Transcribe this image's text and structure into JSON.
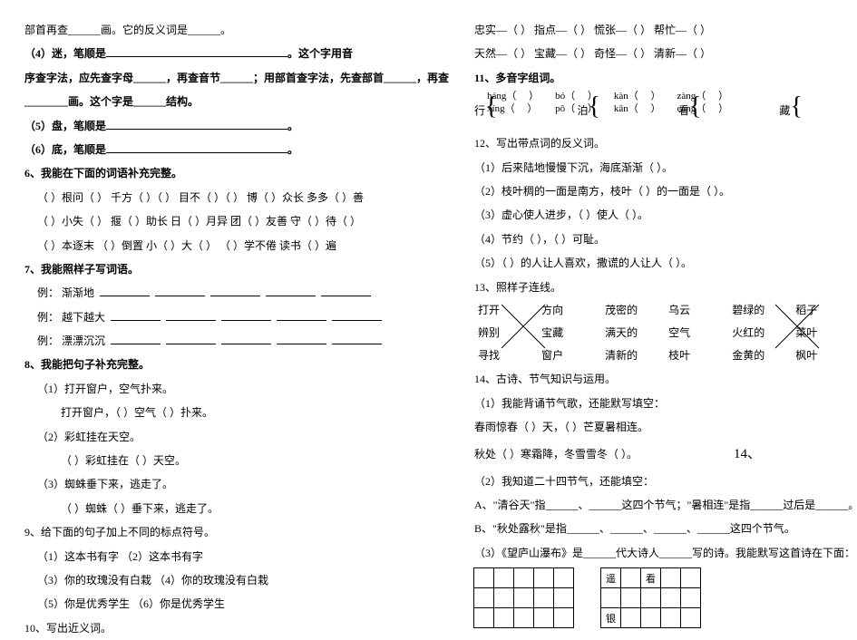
{
  "left": {
    "l1": "部首再查______画。它的反义词是______。",
    "l2_a": "（4）迷，笔顺是",
    "l2_b": "。这个字用音",
    "l3": "序查字法，应先查字母______，再查音节______；用部首查字法，先查部首______，再查",
    "l4": "________画。这个字是______结构。",
    "l5_a": "（5）盘，笔顺是",
    "l5_b": "。",
    "l6_a": "（6）底，笔顺是",
    "l6_b": "。",
    "t6": "6、我能在下面的词语补充完整。",
    "w1": "（  ）根问（  ）  千方（  ）（  ）  目不（  ）（  ）    博（  ）众长  多多（  ）善",
    "w2": "（  ）小失（    ） 揠（  ）助长    日（  ）月异  团（  ）友善   守（  ）待（  ）",
    "w3": "（  ）本逐末  （    ）倒置   小（  ）大（  ） （  ）学不倦   读书（    ）遍",
    "t7": "7、我能照样子写词语。",
    "ex1": "例：  渐渐地",
    "ex2": "例：  越下越大",
    "ex3": "例：  漂漂沉沉",
    "t8": "8、我能把句子补充完整。",
    "s81a": "（1）打开窗户，空气扑来。",
    "s81b": "打开窗户，（          ）空气（        ）扑来。",
    "s82a": "（2）彩虹挂在天空。",
    "s82b": "（            ）彩虹挂在（          ）天空。",
    "s83a": "（3）蜘蛛垂下来，逃走了。",
    "s83b": "（        ）蜘蛛（            ）垂下来，逃走了。",
    "t9": "9、给下面的句子加上不同的标点符号。",
    "s91": "（1）这本书有字         （2）这本书有字",
    "s93": "（3）你的玫瑰没有白栽        （4）你的玫瑰没有白栽",
    "s95": "（5）你是优秀学生    （6）你是优秀学生",
    "t10": "10、写出近义词。"
  },
  "right": {
    "r1": "忠实—（        ）  指点—（        ）  慌张—（        ）  帮忙—（        ）",
    "r2": "天然—（        ）  宝藏—（        ）  奇怪—（        ）  清新—（        ）",
    "t11": "11、多音字组词。",
    "m_top_a": "háng（",
    "m_top_b": "bó（",
    "m_top_c": "kàn（",
    "m_top_d": "zàng（",
    "m_lbl1": "行",
    "m_lbl2": "泊",
    "m_lbl3": "看",
    "m_lbl4": "藏",
    "m_bot_a": "xíng（",
    "m_bot_b": "pō（",
    "m_bot_c": "kān（",
    "m_bot_d": "cáng（",
    "close": "）",
    "t12": "12、写出带点词的反义词。",
    "r121": "（1）后来陆地慢慢下沉，海底渐渐（          ）。",
    "r122": "（2）枝叶稠的一面是南方，枝叶（        ）的一面是（        ）。",
    "r123": "（3）虚心使人进步，（          ）使人（          ）。",
    "r124": "（4）节约（            ），（        ）可耻。",
    "r125": "（5）（            ）的人让人喜欢，撒谎的人让人（            ）。",
    "t13": "13、照样子连线。",
    "c1": [
      "打开",
      "方向",
      "茂密的",
      "乌云",
      "碧绿的",
      "稻子"
    ],
    "c2": [
      "辨别",
      "宝藏",
      "满天的",
      "空气",
      "火红的",
      "菜叶"
    ],
    "c3": [
      "寻找",
      "窗户",
      "清新的",
      "枝叶",
      "金黄的",
      "枫叶"
    ],
    "t14": "14、古诗、节气知识与运用。",
    "r141": "（1）我能背诵节气歌，还能默写填空：",
    "r142a": "春雨惊春（          ）天，（            ）芒夏暑相连。",
    "r142b": "秋处（        ）寒霜降，冬雪雪冬（            ）。",
    "num14b": "14、",
    "r143": "（2）我知道二十四节气，还能填空：",
    "r144": "A、\"清谷天\"指______、______这四个节气；\"暑相连\"是指______过后是______。",
    "r145": "B、\"秋处露秋\"是指______、______、______、______这四个节气。",
    "r146": "（3）《望庐山瀑布》是______代大诗人______写的诗。我能默写这首诗在下面：",
    "g1": [
      "",
      "",
      "",
      "",
      "",
      "",
      "",
      "",
      "",
      "",
      "",
      "",
      "",
      "",
      ""
    ],
    "g2": [
      "遥",
      "",
      "看",
      "",
      "",
      "",
      "",
      "",
      "",
      "",
      "银",
      "",
      "",
      "",
      ""
    ]
  }
}
